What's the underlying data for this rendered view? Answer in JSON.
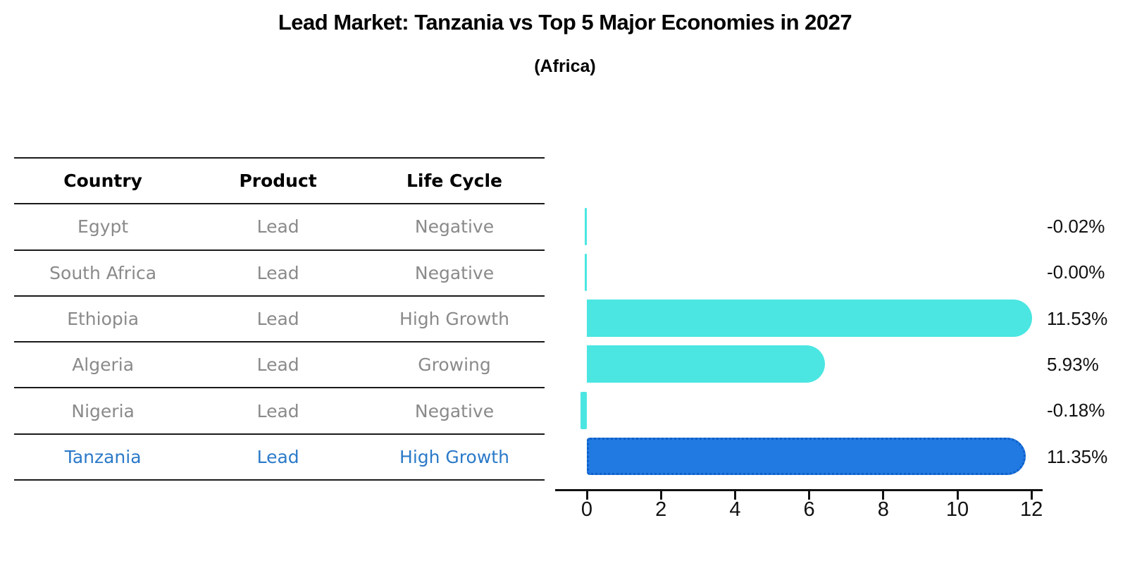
{
  "title": "Lead Market: Tanzania vs Top 5 Major Economies in 2027",
  "subtitle": "(Africa)",
  "table": {
    "headers": [
      "Country",
      "Product",
      "Life Cycle"
    ],
    "rows": [
      {
        "country": "Egypt",
        "product": "Lead",
        "life_cycle": "Negative"
      },
      {
        "country": "South Africa",
        "product": "Lead",
        "life_cycle": "Negative"
      },
      {
        "country": "Ethiopia",
        "product": "Lead",
        "life_cycle": "High Growth"
      },
      {
        "country": "Algeria",
        "product": "Lead",
        "life_cycle": "Growing"
      },
      {
        "country": "Nigeria",
        "product": "Lead",
        "life_cycle": "Negative"
      },
      {
        "country": "Tanzania",
        "product": "Lead",
        "life_cycle": "High Growth"
      }
    ]
  },
  "chart_data": {
    "type": "bar",
    "orientation": "horizontal",
    "title": "Lead Market: Tanzania vs Top 5 Major Economies in 2027",
    "subtitle": "(Africa)",
    "categories": [
      "Egypt",
      "South Africa",
      "Ethiopia",
      "Algeria",
      "Nigeria",
      "Tanzania"
    ],
    "values": [
      -0.02,
      -0.0,
      11.53,
      5.93,
      -0.18,
      11.35
    ],
    "value_labels": [
      "-0.02%",
      "-0.00%",
      "11.53%",
      "5.93%",
      "-0.18%",
      "11.35%"
    ],
    "x_ticks": [
      0,
      2,
      4,
      6,
      8,
      10,
      12
    ],
    "xlim": [
      -0.8,
      12.2
    ],
    "grid": false,
    "legend": "none",
    "xlabel": "",
    "ylabel": "",
    "bar_color": "#4BE6E1",
    "highlight_color": "#2179E2",
    "highlight_index": 5,
    "highlight_category": "Tanzania"
  },
  "colors": {
    "row_text": "#8a8a8a",
    "highlight_text": "#2b7ac9",
    "axis": "#111111",
    "table_line": "#1a1a1a"
  }
}
